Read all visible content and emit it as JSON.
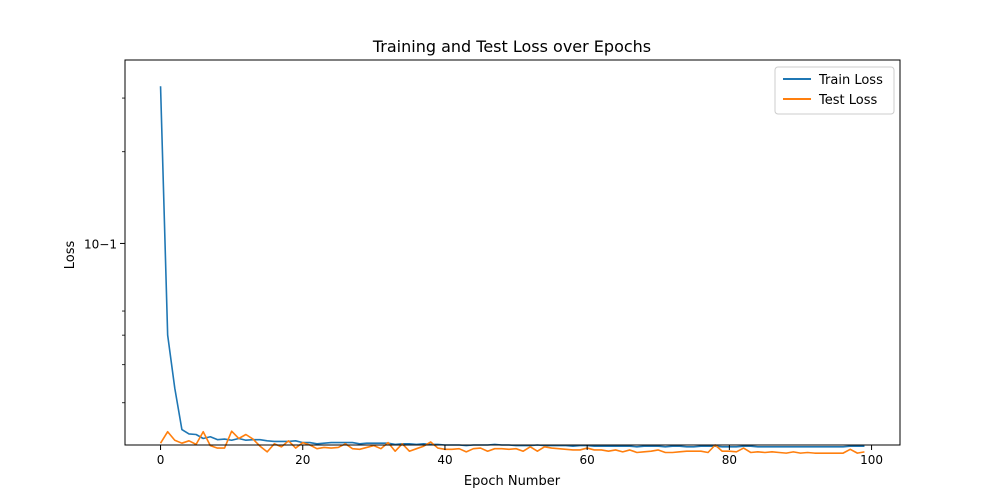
{
  "chart_data": {
    "type": "line",
    "title": "Training and Test Loss over Epochs",
    "xlabel": "Epoch Number",
    "ylabel": "Loss",
    "xlim": [
      -5,
      104
    ],
    "ylim": [
      0.0218,
      0.4
    ],
    "yscale": "log",
    "xticks": [
      0,
      20,
      40,
      60,
      80,
      100
    ],
    "xtick_labels": [
      "0",
      "20",
      "40",
      "60",
      "80",
      "100"
    ],
    "yticks_major": [
      0.1
    ],
    "ytick_labels": [
      "10−1"
    ],
    "yticks_minor": [
      0.03,
      0.04,
      0.05,
      0.06,
      0.2,
      0.3
    ],
    "grid": false,
    "legend_position": "top-right",
    "colors": {
      "train": "#1f77b4",
      "test": "#ff7f0e"
    },
    "series": [
      {
        "name": "Train Loss",
        "values": [
          0.328,
          0.05,
          0.0335,
          0.0245,
          0.0237,
          0.0236,
          0.0229,
          0.0232,
          0.0227,
          0.0228,
          0.0226,
          0.0229,
          0.0226,
          0.0227,
          0.0227,
          0.0225,
          0.0224,
          0.0224,
          0.0224,
          0.0225,
          0.0222,
          0.0222,
          0.022,
          0.0221,
          0.0222,
          0.0222,
          0.0222,
          0.0222,
          0.022,
          0.0221,
          0.0221,
          0.0221,
          0.0221,
          0.0219,
          0.022,
          0.022,
          0.0219,
          0.022,
          0.0219,
          0.0219,
          0.0218,
          0.0218,
          0.0218,
          0.0217,
          0.0218,
          0.0218,
          0.0218,
          0.0219,
          0.0218,
          0.0218,
          0.0217,
          0.0217,
          0.0217,
          0.0218,
          0.0217,
          0.0217,
          0.0217,
          0.0217,
          0.0216,
          0.0217,
          0.0217,
          0.0216,
          0.0216,
          0.0216,
          0.0216,
          0.0216,
          0.0216,
          0.0215,
          0.0216,
          0.0216,
          0.0216,
          0.0215,
          0.0216,
          0.0216,
          0.0215,
          0.0215,
          0.0216,
          0.0216,
          0.0216,
          0.0215,
          0.0215,
          0.0215,
          0.0216,
          0.0216,
          0.0215,
          0.0215,
          0.0215,
          0.0215,
          0.0215,
          0.0215,
          0.0215,
          0.0215,
          0.0215,
          0.0215,
          0.0215,
          0.0215,
          0.0215,
          0.0216,
          0.0216,
          0.0216
        ]
      },
      {
        "name": "Test Loss",
        "values": [
          0.0221,
          0.0241,
          0.0226,
          0.0221,
          0.0225,
          0.0219,
          0.0241,
          0.0217,
          0.0213,
          0.0213,
          0.0242,
          0.0229,
          0.0236,
          0.0228,
          0.0216,
          0.0207,
          0.022,
          0.0215,
          0.0225,
          0.0213,
          0.0222,
          0.0218,
          0.0212,
          0.0214,
          0.0213,
          0.0214,
          0.022,
          0.0212,
          0.0211,
          0.0214,
          0.0217,
          0.0212,
          0.0222,
          0.0208,
          0.022,
          0.0208,
          0.0212,
          0.0216,
          0.0223,
          0.0213,
          0.0211,
          0.0211,
          0.0212,
          0.0207,
          0.0212,
          0.0213,
          0.0208,
          0.0212,
          0.0212,
          0.0211,
          0.0212,
          0.0208,
          0.0215,
          0.0208,
          0.0215,
          0.0213,
          0.0212,
          0.0211,
          0.021,
          0.021,
          0.0213,
          0.021,
          0.021,
          0.0208,
          0.021,
          0.0207,
          0.021,
          0.0206,
          0.0207,
          0.0208,
          0.021,
          0.0206,
          0.0206,
          0.0207,
          0.0208,
          0.0208,
          0.0208,
          0.0206,
          0.0218,
          0.0208,
          0.0208,
          0.0207,
          0.0213,
          0.0206,
          0.0207,
          0.0206,
          0.0207,
          0.0206,
          0.0205,
          0.0207,
          0.0205,
          0.0206,
          0.0205,
          0.0205,
          0.0205,
          0.0205,
          0.0205,
          0.0211,
          0.0205,
          0.0207
        ]
      }
    ]
  }
}
